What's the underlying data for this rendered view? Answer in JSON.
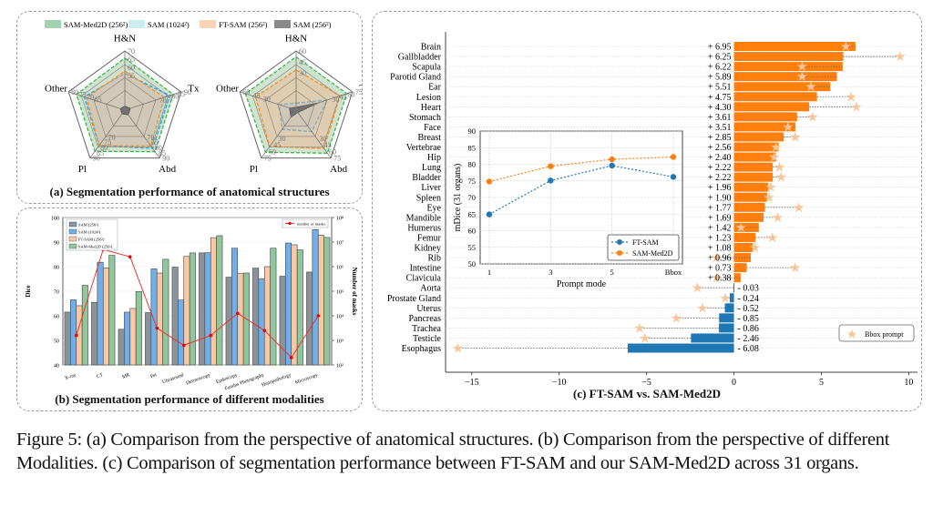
{
  "figure": {
    "caption": "Figure 5: (a) Comparison from the perspective of anatomical structures. (b) Comparison from the perspective of different Modalities. (c) Comparison of segmentation performance between FT-SAM and our SAM-Med2D across 31 organs."
  },
  "panels": {
    "a_title": "(a) Segmentation performance of anatomical structures",
    "b_title": "(b) Segmentation performance of different modalities",
    "c_title": "(c) FT-SAM   vs.  SAM-Med2D"
  },
  "colors": {
    "sam_med2d": "#8fc79a",
    "sam_1024": "#6fb0ea",
    "ft_sam": "#f9c8a4",
    "sam_256": "#8a9399",
    "masks_line": "#ee3333",
    "positive_bar": "#ff7f0e",
    "negative_bar": "#1f77b4",
    "star": "#f8c59a"
  },
  "chart_data": [
    {
      "type": "radar",
      "id": "a-left",
      "legend": [
        "SAM-Med2D (256²)",
        "SAM (1024²)",
        "FT-SAM (256²)",
        "SAM (256²)"
      ],
      "axes": [
        "H&N",
        "Tx",
        "Abd",
        "Pl",
        "Other"
      ],
      "axis_ticks": {
        "H&N": [
          "55",
          "60",
          "65",
          "70"
        ],
        "Tx": [
          "70",
          "75",
          "80",
          "85",
          "90"
        ],
        "Abd": [
          "70",
          "75",
          "80",
          "85",
          "90"
        ],
        "Pl": [
          "70",
          "75",
          "80",
          "85",
          "90"
        ],
        "Other": [
          "65",
          "70",
          "75",
          "80"
        ]
      },
      "axis_range_frac_outer": 1.0,
      "series": [
        {
          "name": "SAM-Med2D (256²)",
          "values_frac": [
            0.88,
            0.86,
            0.87,
            0.86,
            0.86
          ]
        },
        {
          "name": "SAM (1024²)",
          "values_frac": [
            0.62,
            0.8,
            0.8,
            0.74,
            0.72
          ]
        },
        {
          "name": "FT-SAM (256²)",
          "values_frac": [
            0.66,
            0.7,
            0.75,
            0.74,
            0.68
          ]
        },
        {
          "name": "SAM (256²)",
          "values_frac": [
            0.07,
            0.1,
            0.1,
            0.08,
            0.08
          ]
        }
      ]
    },
    {
      "type": "radar",
      "id": "a-right",
      "axes": [
        "H&N",
        "Tx",
        "Abd",
        "Pl",
        "Other"
      ],
      "axis_ticks": {
        "H&N": [
          "30",
          "45",
          "60"
        ],
        "Tx": [
          "30",
          "45",
          "60",
          "75"
        ],
        "Abd": [
          "30",
          "45",
          "60",
          "75"
        ],
        "Pl": [
          "30",
          "45",
          "60",
          "75"
        ],
        "Other": [
          "30",
          "45",
          "60"
        ]
      },
      "series": [
        {
          "name": "SAM-Med2D (256²)",
          "values_frac": [
            0.9,
            0.9,
            0.9,
            0.88,
            0.9
          ]
        },
        {
          "name": "SAM (1024²)",
          "values_frac": [
            0.12,
            0.55,
            0.45,
            0.4,
            0.3
          ]
        },
        {
          "name": "FT-SAM (256²)",
          "values_frac": [
            0.68,
            0.78,
            0.8,
            0.76,
            0.72
          ]
        },
        {
          "name": "SAM (256²)",
          "values_frac": [
            0.05,
            0.4,
            0.05,
            0.15,
            0.12
          ]
        }
      ]
    },
    {
      "type": "bar",
      "id": "b",
      "ylabel": "Dice",
      "y2label": "Number of masks",
      "ylim": [
        40,
        100
      ],
      "yticks": [
        "40",
        "50",
        "60",
        "70",
        "80",
        "90",
        "100"
      ],
      "y2ticks": [
        "10²",
        "10³",
        "10⁴",
        "10⁵",
        "10⁶",
        "10⁷",
        "10⁸"
      ],
      "y2lim_log10": [
        2,
        8
      ],
      "categories": [
        "X-ray",
        "CT",
        "MR",
        "Pet",
        "Ultrasound",
        "Dermoscopy",
        "Endoscopy",
        "Fundus Photography",
        "Histopathology",
        "Microscopy"
      ],
      "series": [
        {
          "name": "SAM (256²)",
          "values": [
            61.5,
            65.5,
            54.5,
            61.3,
            79.8,
            85.6,
            75.7,
            79.4,
            76.1,
            77.8
          ]
        },
        {
          "name": "SAM (1024²)",
          "values": [
            66.5,
            81.8,
            61.5,
            79.1,
            66.4,
            85.7,
            87.5,
            75.0,
            89.6,
            95.1
          ]
        },
        {
          "name": "FT-SAM (256²)",
          "values": [
            64.1,
            79.5,
            63.0,
            77.4,
            84.2,
            91.8,
            77.2,
            80.0,
            88.9,
            92.8
          ]
        },
        {
          "name": "SAM-Med2D (256²)",
          "values": [
            72.4,
            84.6,
            69.9,
            83.0,
            85.6,
            92.6,
            77.4,
            87.5,
            86.8,
            91.9
          ]
        }
      ],
      "line": {
        "name": "number of masks",
        "log10_values": [
          3.2,
          6.7,
          6.4,
          3.5,
          2.8,
          3.2,
          4.1,
          3.4,
          2.3,
          4.0
        ]
      },
      "legend_left": [
        "SAM (256²)",
        "SAM (1024²)",
        "FT-SAM (256²)",
        "SAM-Med2D (256²)"
      ],
      "legend_right": "number of masks"
    },
    {
      "type": "bar",
      "id": "c",
      "orientation": "horizontal",
      "xlim": [
        -16.5,
        10.5
      ],
      "xticks": [
        "−15",
        "−10",
        "−5",
        "0",
        "5",
        "10"
      ],
      "xtick_values": [
        -15,
        -10,
        -5,
        0,
        5,
        10
      ],
      "categories": [
        "Brain",
        "Gallbladder",
        "Scapula",
        "Parotid Gland",
        "Ear",
        "Lesion",
        "Heart",
        "Stomach",
        "Face",
        "Breast",
        "Vertebrae",
        "Hip",
        "Lung",
        "Bladder",
        "Liver",
        "Spleen",
        "Eye",
        "Mandible",
        "Humerus",
        "Femur",
        "Kidney",
        "Rib",
        "Intestine",
        "Clavicula",
        "Aorta",
        "Prostate Gland",
        "Uterus",
        "Pancreas",
        "Trachea",
        "Testicle",
        "Esophagus"
      ],
      "values": [
        6.95,
        6.25,
        6.22,
        5.89,
        5.51,
        4.75,
        4.3,
        3.61,
        3.51,
        2.85,
        2.56,
        2.4,
        2.22,
        2.22,
        1.96,
        1.9,
        1.77,
        1.69,
        1.42,
        1.23,
        1.08,
        0.96,
        0.73,
        0.38,
        -0.03,
        -0.24,
        -0.52,
        -0.85,
        -0.86,
        -2.46,
        -6.08
      ],
      "labels": [
        "+ 6.95",
        "+ 6.25",
        "+ 6.22",
        "+ 5.89",
        "+ 5.51",
        "+ 4.75",
        "+ 4.30",
        "+ 3.61",
        "+ 3.51",
        "+ 2.85",
        "+ 2.56",
        "+ 2.40",
        "+ 2.22",
        "+ 2.22",
        "+ 1.96",
        "+ 1.90",
        "+ 1.77",
        "+ 1.69",
        "+ 1.42",
        "+ 1.23",
        "+ 1.08",
        "+ 0.96",
        "+ 0.73",
        "+ 0.38",
        "- 0.03",
        "- 0.24",
        "- 0.52",
        "- 0.85",
        "- 0.86",
        "- 2.46",
        "- 6.08"
      ],
      "bbox_prompt_values": [
        6.4,
        9.5,
        3.9,
        3.9,
        4.4,
        6.7,
        7.0,
        4.5,
        3.1,
        3.5,
        2.4,
        2.3,
        2.6,
        2.7,
        2.1,
        2.0,
        3.7,
        2.5,
        0.4,
        2.2,
        1.2,
        -1.0,
        3.5,
        -1.0,
        -2.1,
        -0.5,
        -1.8,
        -3.3,
        -5.4,
        -5.1,
        -15.8
      ],
      "legend": "Bbox prompt"
    },
    {
      "type": "line",
      "id": "c-inset",
      "xlabel": "Prompt mode",
      "ylabel": "mDice (31 organs)",
      "categories": [
        "1",
        "3",
        "5",
        "Bbox"
      ],
      "ylim": [
        50,
        90
      ],
      "yticks": [
        "50",
        "55",
        "60",
        "65",
        "70",
        "75",
        "80",
        "85",
        "90"
      ],
      "series": [
        {
          "name": "FT-SAM",
          "values": [
            64.9,
            75.1,
            79.6,
            76.2
          ]
        },
        {
          "name": "SAM-Med2D",
          "values": [
            74.8,
            79.4,
            81.5,
            82.2
          ]
        }
      ]
    }
  ]
}
